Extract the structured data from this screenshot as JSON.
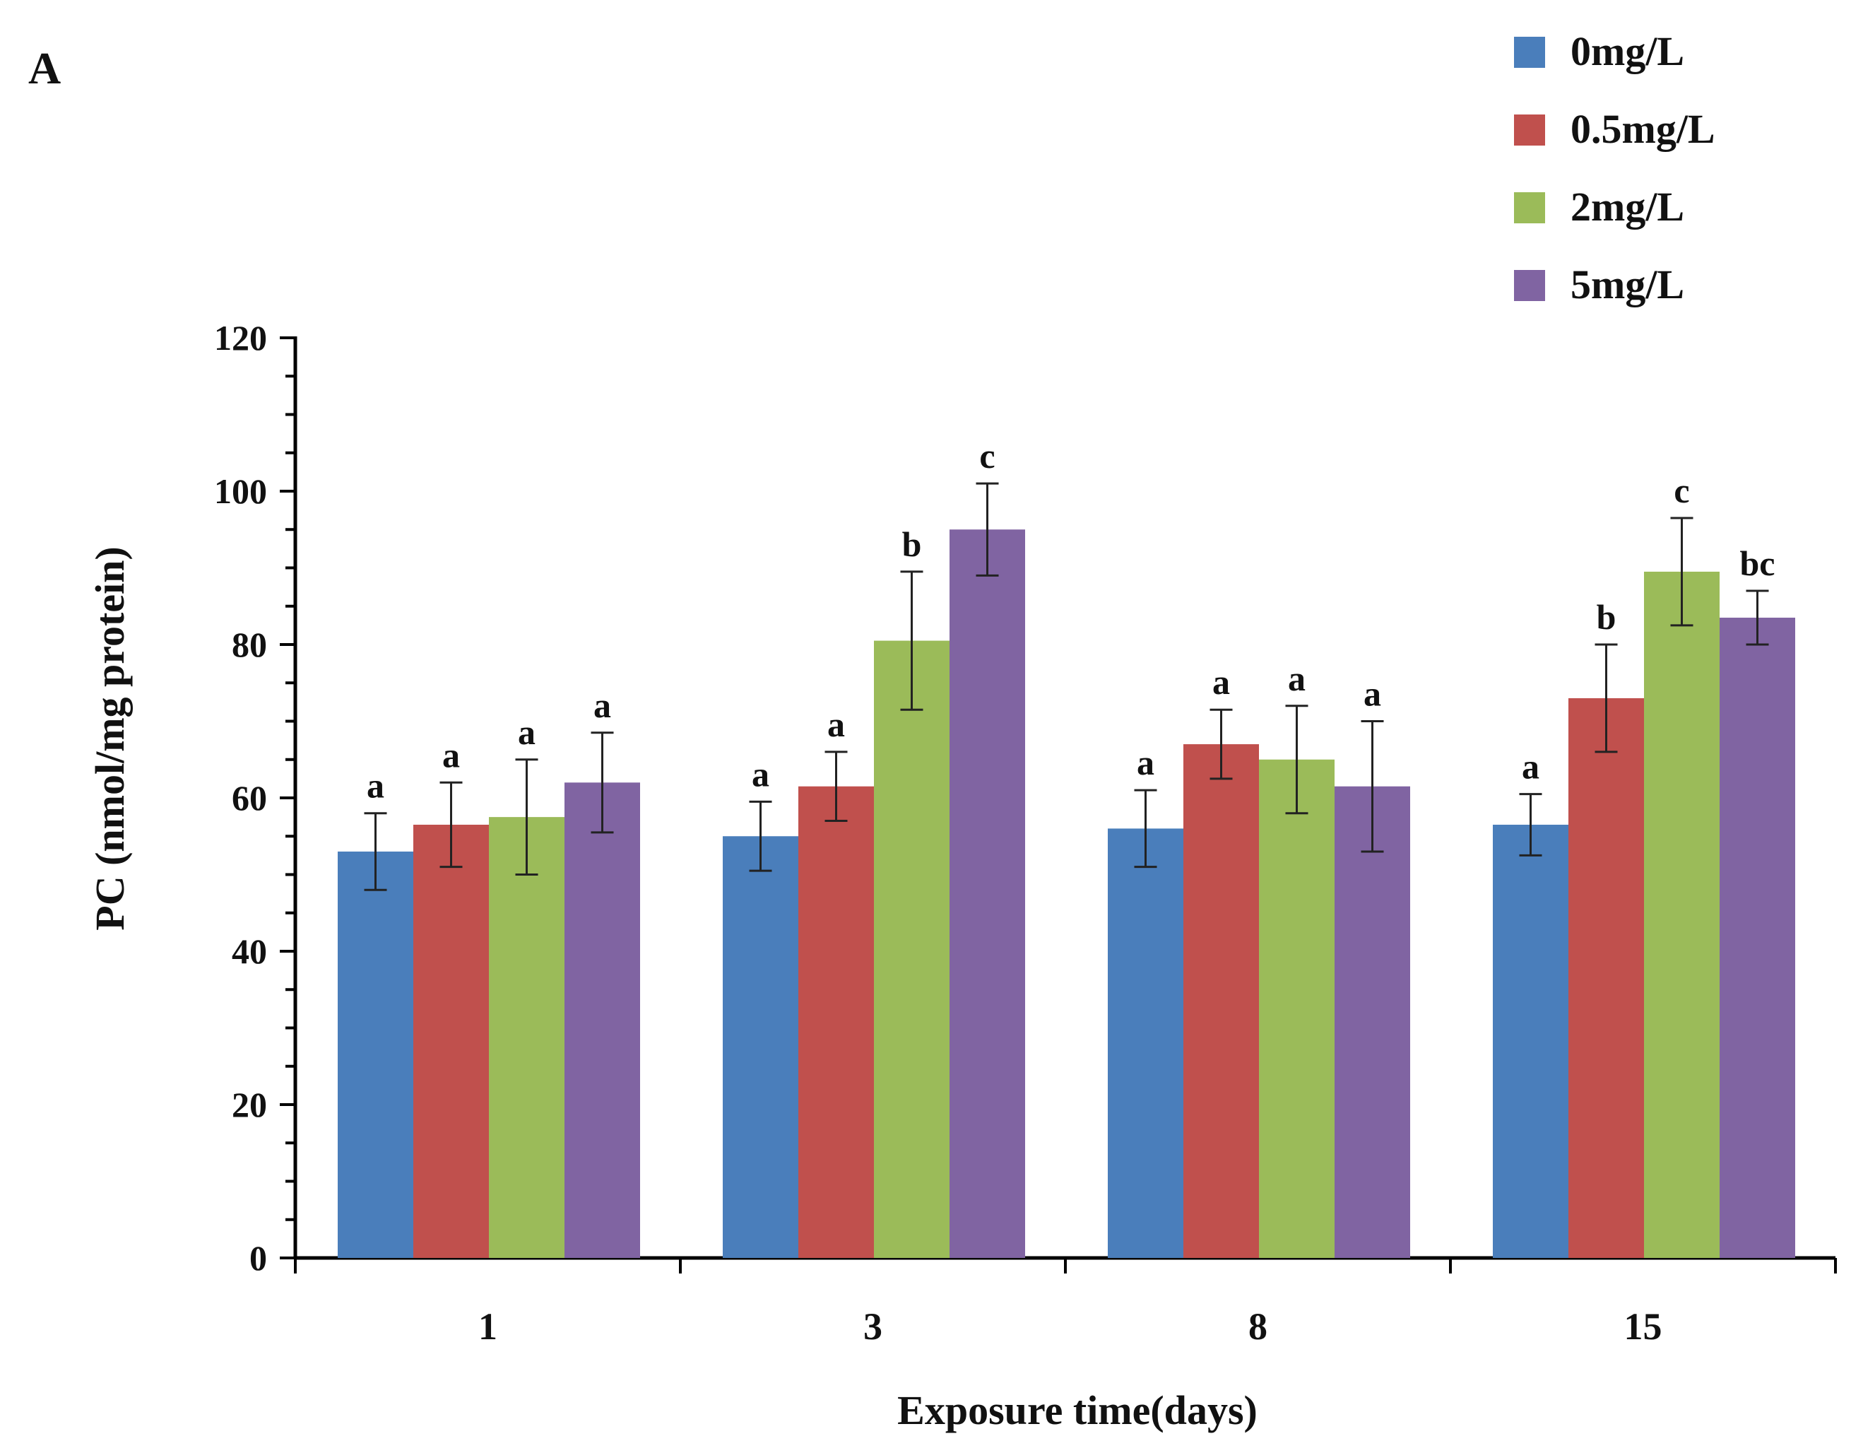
{
  "panel_label": "A",
  "chart_data": {
    "type": "bar",
    "title": "",
    "xlabel": "Exposure time(days)",
    "ylabel": "PC (nmol/mg protein)",
    "ylim": [
      0,
      120
    ],
    "yticks": [
      0,
      20,
      40,
      60,
      80,
      100,
      120
    ],
    "y_minor_step": 5,
    "grid": false,
    "legend_position": "top-right",
    "categories": [
      "1",
      "3",
      "8",
      "15"
    ],
    "series": [
      {
        "name": "0mg/L",
        "color": "#4a7ebb",
        "values": [
          53,
          55,
          56,
          56.5
        ],
        "errors": [
          5,
          4.5,
          5,
          4
        ],
        "labels": [
          "a",
          "a",
          "a",
          "a"
        ]
      },
      {
        "name": "0.5mg/L",
        "color": "#c0504d",
        "values": [
          56.5,
          61.5,
          67,
          73
        ],
        "errors": [
          5.5,
          4.5,
          4.5,
          7
        ],
        "labels": [
          "a",
          "a",
          "a",
          "b"
        ]
      },
      {
        "name": "2mg/L",
        "color": "#9bbb59",
        "values": [
          57.5,
          80.5,
          65,
          89.5
        ],
        "errors": [
          7.5,
          9,
          7,
          7
        ],
        "labels": [
          "a",
          "b",
          "a",
          "c"
        ]
      },
      {
        "name": "5mg/L",
        "color": "#8064a2",
        "values": [
          62,
          95,
          61.5,
          83.5
        ],
        "errors": [
          6.5,
          6,
          8.5,
          3.5
        ],
        "labels": [
          "a",
          "c",
          "a",
          "bc"
        ]
      }
    ]
  }
}
